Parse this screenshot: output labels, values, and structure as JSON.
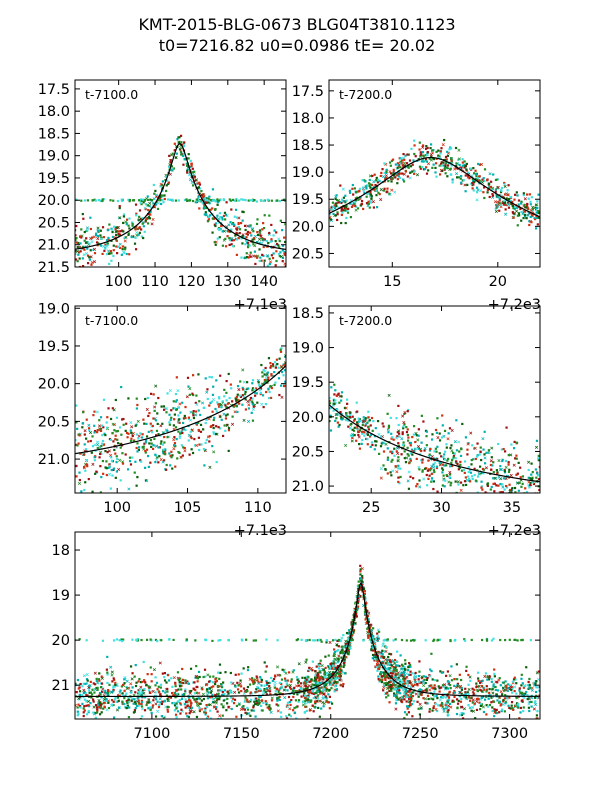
{
  "title_lines": [
    "KMT-2015-BLG-0673 BLG04T3810.1123",
    "t0=7216.82 u0=0.0986 tE=  20.02"
  ],
  "colors": {
    "series_dark_green": "#0b5f0b",
    "series_cyan": "#00b0b0",
    "series_red": "#a01010",
    "series_light_cyan": "#40e0e0",
    "series_green": "#228b22",
    "series_orange_red": "#d03010",
    "model": "#000000"
  },
  "chart_data": [
    {
      "type": "scatter",
      "panel": "top-left",
      "inset_label": "t-7100.0",
      "offset_label": "+7.1e3",
      "xlim": [
        7188,
        7246
      ],
      "ylim_inverted": [
        21.5,
        17.3
      ],
      "xticks": [
        {
          "v": 7200,
          "label": "100"
        },
        {
          "v": 7210,
          "label": "110"
        },
        {
          "v": 7220,
          "label": "120"
        },
        {
          "v": 7230,
          "label": "130"
        },
        {
          "v": 7240,
          "label": "140"
        }
      ],
      "yticks": [
        {
          "v": 17.5,
          "label": "17.5"
        },
        {
          "v": 18.0,
          "label": "18.0"
        },
        {
          "v": 18.5,
          "label": "18.5"
        },
        {
          "v": 19.0,
          "label": "19.0"
        },
        {
          "v": 19.5,
          "label": "19.5"
        },
        {
          "v": 20.0,
          "label": "20.0"
        },
        {
          "v": 20.5,
          "label": "20.5"
        },
        {
          "v": 21.0,
          "label": "21.0"
        },
        {
          "v": 21.5,
          "label": "21.5"
        }
      ],
      "model": {
        "t0": 7216.82,
        "u0": 0.0986,
        "tE": 20.02,
        "mag_base": 21.25
      }
    },
    {
      "type": "scatter",
      "panel": "top-right",
      "inset_label": "t-7200.0",
      "offset_label": "+7.2e3",
      "xlim": [
        7212,
        7222
      ],
      "ylim_inverted": [
        20.75,
        17.3
      ],
      "xticks": [
        {
          "v": 7215,
          "label": "15"
        },
        {
          "v": 7220,
          "label": "20"
        }
      ],
      "yticks": [
        {
          "v": 17.5,
          "label": "17.5"
        },
        {
          "v": 18.0,
          "label": "18.0"
        },
        {
          "v": 18.5,
          "label": "18.5"
        },
        {
          "v": 19.0,
          "label": "19.0"
        },
        {
          "v": 19.5,
          "label": "19.5"
        },
        {
          "v": 20.0,
          "label": "20.0"
        },
        {
          "v": 20.5,
          "label": "20.5"
        }
      ],
      "model": {
        "t0": 7216.82,
        "u0": 0.0986,
        "tE": 20.02,
        "mag_base": 21.25
      }
    },
    {
      "type": "scatter",
      "panel": "middle-left",
      "inset_label": "t-7100.0",
      "offset_label": "+7.1e3",
      "xlim": [
        7197,
        7212
      ],
      "ylim_inverted": [
        21.45,
        18.97
      ],
      "xticks": [
        {
          "v": 7200,
          "label": "100"
        },
        {
          "v": 7205,
          "label": "105"
        },
        {
          "v": 7210,
          "label": "110"
        }
      ],
      "yticks": [
        {
          "v": 19.0,
          "label": "19.0"
        },
        {
          "v": 19.5,
          "label": "19.5"
        },
        {
          "v": 20.0,
          "label": "20.0"
        },
        {
          "v": 20.5,
          "label": "20.5"
        },
        {
          "v": 21.0,
          "label": "21.0"
        }
      ],
      "model": {
        "t0": 7216.82,
        "u0": 0.0986,
        "tE": 20.02,
        "mag_base": 21.25
      }
    },
    {
      "type": "scatter",
      "panel": "middle-right",
      "inset_label": "t-7200.0",
      "offset_label": "+7.2e3",
      "xlim": [
        7222,
        7237
      ],
      "ylim_inverted": [
        21.1,
        18.4
      ],
      "xticks": [
        {
          "v": 7225,
          "label": "25"
        },
        {
          "v": 7230,
          "label": "30"
        },
        {
          "v": 7235,
          "label": "35"
        }
      ],
      "yticks": [
        {
          "v": 18.5,
          "label": "18.5"
        },
        {
          "v": 19.0,
          "label": "19.0"
        },
        {
          "v": 19.5,
          "label": "19.5"
        },
        {
          "v": 20.0,
          "label": "20.0"
        },
        {
          "v": 20.5,
          "label": "20.5"
        },
        {
          "v": 21.0,
          "label": "21.0"
        }
      ],
      "model": {
        "t0": 7216.82,
        "u0": 0.0986,
        "tE": 20.02,
        "mag_base": 21.25
      }
    },
    {
      "type": "scatter",
      "panel": "bottom",
      "inset_label": "",
      "offset_label": "",
      "xlim": [
        7057,
        7317
      ],
      "ylim_inverted": [
        21.75,
        17.6
      ],
      "xticks": [
        {
          "v": 7100,
          "label": "7100"
        },
        {
          "v": 7150,
          "label": "7150"
        },
        {
          "v": 7200,
          "label": "7200"
        },
        {
          "v": 7250,
          "label": "7250"
        },
        {
          "v": 7300,
          "label": "7300"
        }
      ],
      "yticks": [
        {
          "v": 18,
          "label": "18"
        },
        {
          "v": 19,
          "label": "19"
        },
        {
          "v": 20,
          "label": "20"
        },
        {
          "v": 21,
          "label": "21"
        }
      ],
      "model": {
        "t0": 7216.82,
        "u0": 0.0986,
        "tE": 20.02,
        "mag_base": 21.25
      }
    }
  ]
}
